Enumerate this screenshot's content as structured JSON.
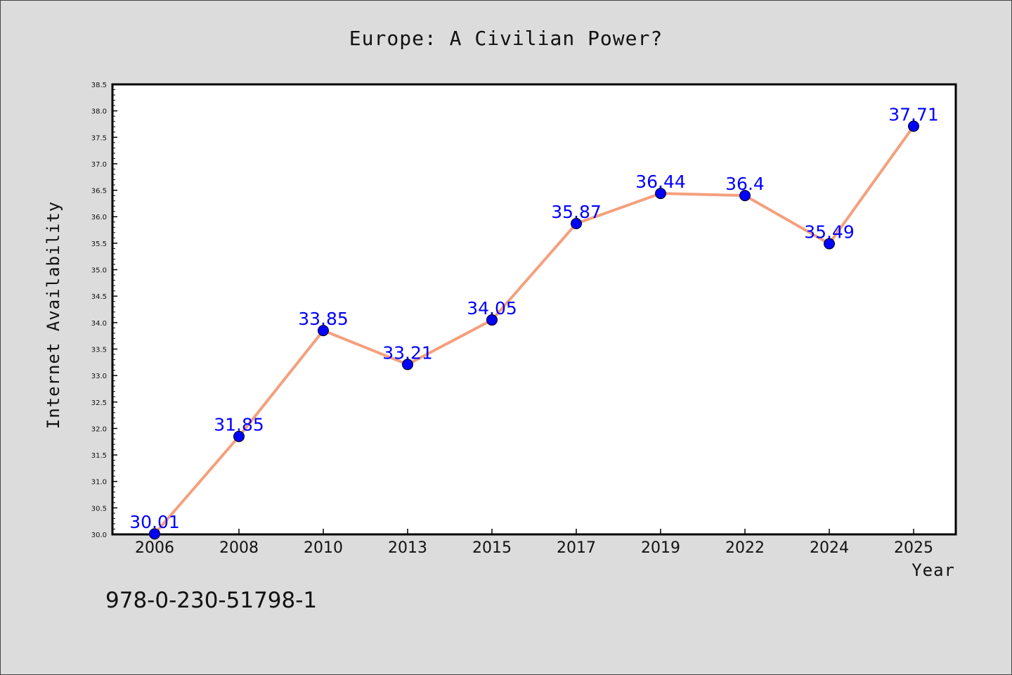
{
  "chart_data": {
    "type": "line",
    "title": "Europe: A Civilian Power?",
    "xlabel": "Year",
    "ylabel": "Internet Availability",
    "categories": [
      "2006",
      "2008",
      "2010",
      "2013",
      "2015",
      "2017",
      "2019",
      "2022",
      "2024",
      "2025"
    ],
    "series": [
      {
        "values": [
          30.01,
          31.85,
          33.85,
          33.21,
          34.05,
          35.87,
          36.44,
          36.4,
          35.49,
          37.71
        ]
      }
    ],
    "data_labels": [
      "30.01",
      "31.85",
      "33.85",
      "33.21",
      "34.05",
      "35.87",
      "36.44",
      "36.4",
      "35.49",
      "37.71"
    ],
    "ylim": [
      30.0,
      38.5
    ],
    "yticks": [
      "30.0",
      "30.5",
      "31.0",
      "31.5",
      "32.0",
      "32.5",
      "33.0",
      "33.5",
      "34.0",
      "34.5",
      "35.0",
      "35.5",
      "36.0",
      "36.5",
      "37.0",
      "37.5",
      "38.0",
      "38.5"
    ],
    "grid": false,
    "line_color": "#f4a07e",
    "marker_color": "#0000ff",
    "label_color": "#0000ff"
  },
  "footnote": "978-0-230-51798-1"
}
